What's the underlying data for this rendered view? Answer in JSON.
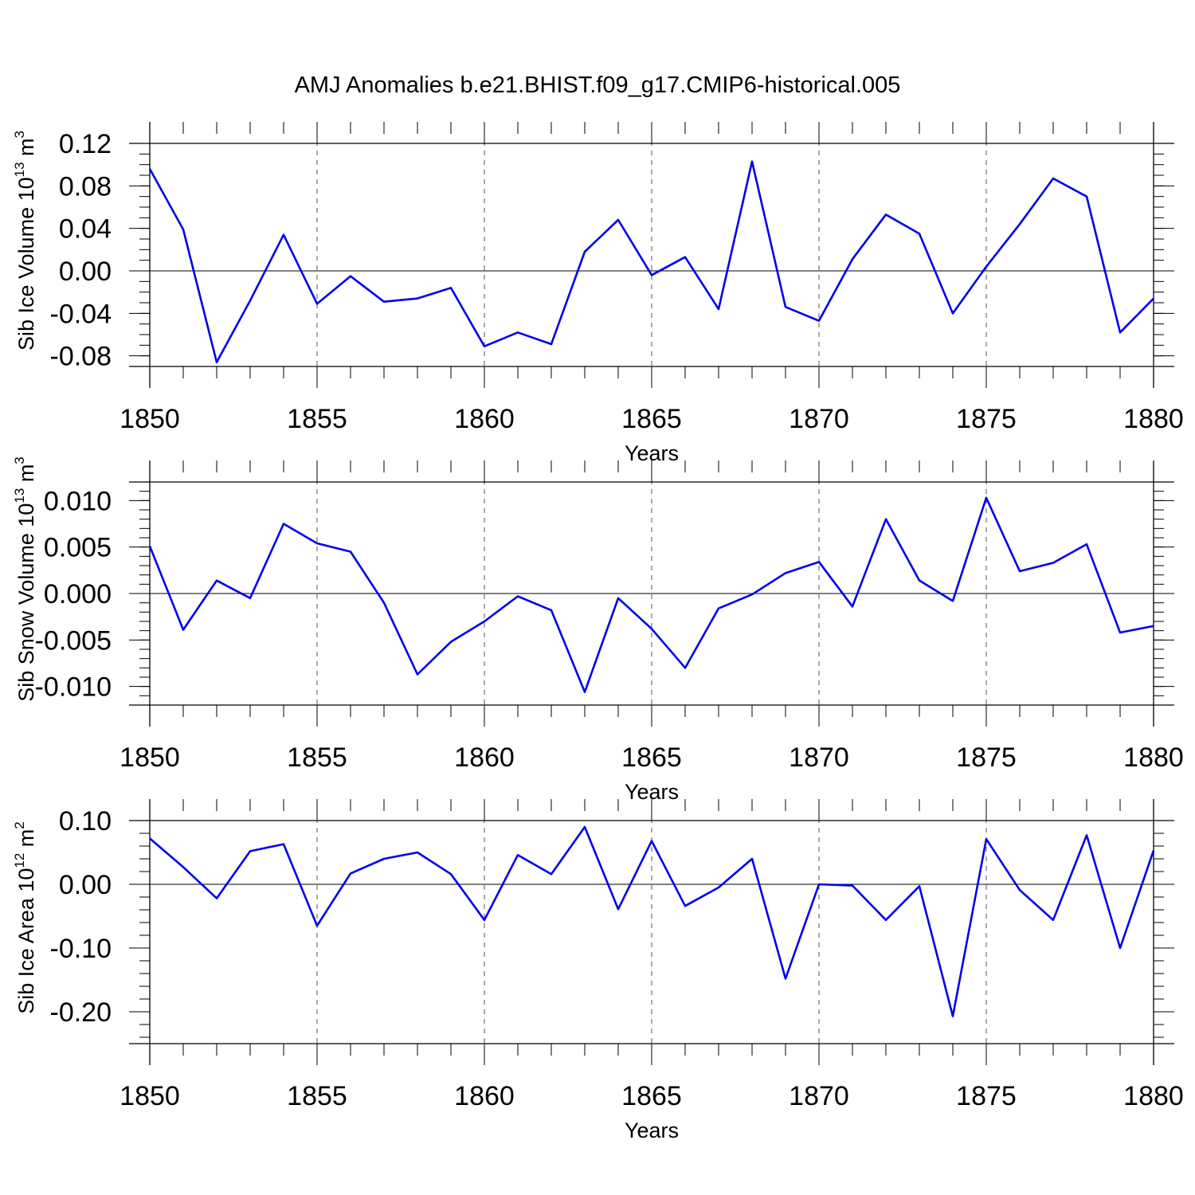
{
  "title": "AMJ Anomalies b.e21.BHIST.f09_g17.CMIP6-historical.005",
  "line_color": "#0000ee",
  "chart_data": [
    {
      "type": "line",
      "name": "ice-volume",
      "ylabel": {
        "main": "Sib Ice Volume 10",
        "sup1": "13",
        "unit": " m",
        "sup2": "3"
      },
      "xlabel": "Years",
      "xlim": [
        1850,
        1880
      ],
      "ylim": [
        -0.09,
        0.12
      ],
      "x_ticks": [
        1850,
        1855,
        1860,
        1865,
        1870,
        1875,
        1880
      ],
      "y_ticks": [
        0.12,
        0.08,
        0.04,
        0.0,
        -0.04,
        -0.08
      ],
      "y_tick_labels": [
        "0.12",
        "0.08",
        "0.04",
        "0.00",
        "-0.04",
        "-0.08"
      ],
      "y_minor_step": 0.01,
      "x": [
        1850,
        1851,
        1852,
        1853,
        1854,
        1855,
        1856,
        1857,
        1858,
        1859,
        1860,
        1861,
        1862,
        1863,
        1864,
        1865,
        1866,
        1867,
        1868,
        1869,
        1870,
        1871,
        1872,
        1873,
        1874,
        1875,
        1876,
        1877,
        1878,
        1879,
        1880
      ],
      "y": [
        0.096,
        0.039,
        -0.086,
        -0.028,
        0.034,
        -0.031,
        -0.005,
        -0.029,
        -0.026,
        -0.016,
        -0.071,
        -0.058,
        -0.069,
        0.018,
        0.048,
        -0.004,
        0.013,
        -0.036,
        0.103,
        -0.034,
        -0.047,
        0.011,
        0.053,
        0.035,
        -0.04,
        0.004,
        0.044,
        0.087,
        0.07,
        -0.058,
        -0.026
      ]
    },
    {
      "type": "line",
      "name": "snow-volume",
      "ylabel": {
        "main": "Sib Snow Volume 10",
        "sup1": "13",
        "unit": " m",
        "sup2": "3"
      },
      "xlabel": "Years",
      "xlim": [
        1850,
        1880
      ],
      "ylim": [
        -0.012,
        0.012
      ],
      "x_ticks": [
        1850,
        1855,
        1860,
        1865,
        1870,
        1875,
        1880
      ],
      "y_ticks": [
        0.01,
        0.005,
        0.0,
        -0.005,
        -0.01
      ],
      "y_tick_labels": [
        "0.010",
        "0.005",
        "0.000",
        "-0.005",
        "-0.010"
      ],
      "y_minor_step": 0.001,
      "x": [
        1850,
        1851,
        1852,
        1853,
        1854,
        1855,
        1856,
        1857,
        1858,
        1859,
        1860,
        1861,
        1862,
        1863,
        1864,
        1865,
        1866,
        1867,
        1868,
        1869,
        1870,
        1871,
        1872,
        1873,
        1874,
        1875,
        1876,
        1877,
        1878,
        1879,
        1880
      ],
      "y": [
        0.0051,
        -0.0039,
        0.0014,
        -0.0005,
        0.0075,
        0.0054,
        0.0045,
        -0.001,
        -0.0087,
        -0.0052,
        -0.003,
        -0.0003,
        -0.0018,
        -0.0106,
        -0.0005,
        -0.0038,
        -0.008,
        -0.0016,
        -0.0001,
        0.0022,
        0.0034,
        -0.0014,
        0.008,
        0.0014,
        -0.0008,
        0.0103,
        0.0024,
        0.0033,
        0.0053,
        -0.0042,
        -0.0035
      ]
    },
    {
      "type": "line",
      "name": "ice-area",
      "ylabel": {
        "main": "Sib Ice Area 10",
        "sup1": "12",
        "unit": " m",
        "sup2": "2"
      },
      "xlabel": "Years",
      "xlim": [
        1850,
        1880
      ],
      "ylim": [
        -0.25,
        0.1
      ],
      "x_ticks": [
        1850,
        1855,
        1860,
        1865,
        1870,
        1875,
        1880
      ],
      "y_ticks": [
        0.1,
        0.0,
        -0.1,
        -0.2
      ],
      "y_tick_labels": [
        "0.10",
        "0.00",
        "-0.10",
        "-0.20"
      ],
      "y_minor_step": 0.02,
      "x": [
        1850,
        1851,
        1852,
        1853,
        1854,
        1855,
        1856,
        1857,
        1858,
        1859,
        1860,
        1861,
        1862,
        1863,
        1864,
        1865,
        1866,
        1867,
        1868,
        1869,
        1870,
        1871,
        1872,
        1873,
        1874,
        1875,
        1876,
        1877,
        1878,
        1879,
        1880
      ],
      "y": [
        0.072,
        0.027,
        -0.022,
        0.052,
        0.063,
        -0.065,
        0.017,
        0.04,
        0.05,
        0.016,
        -0.056,
        0.046,
        0.016,
        0.09,
        -0.039,
        0.068,
        -0.034,
        -0.005,
        0.04,
        -0.148,
        0.0,
        -0.002,
        -0.056,
        -0.003,
        -0.207,
        0.071,
        -0.009,
        -0.056,
        0.077,
        -0.1,
        0.053
      ]
    }
  ]
}
